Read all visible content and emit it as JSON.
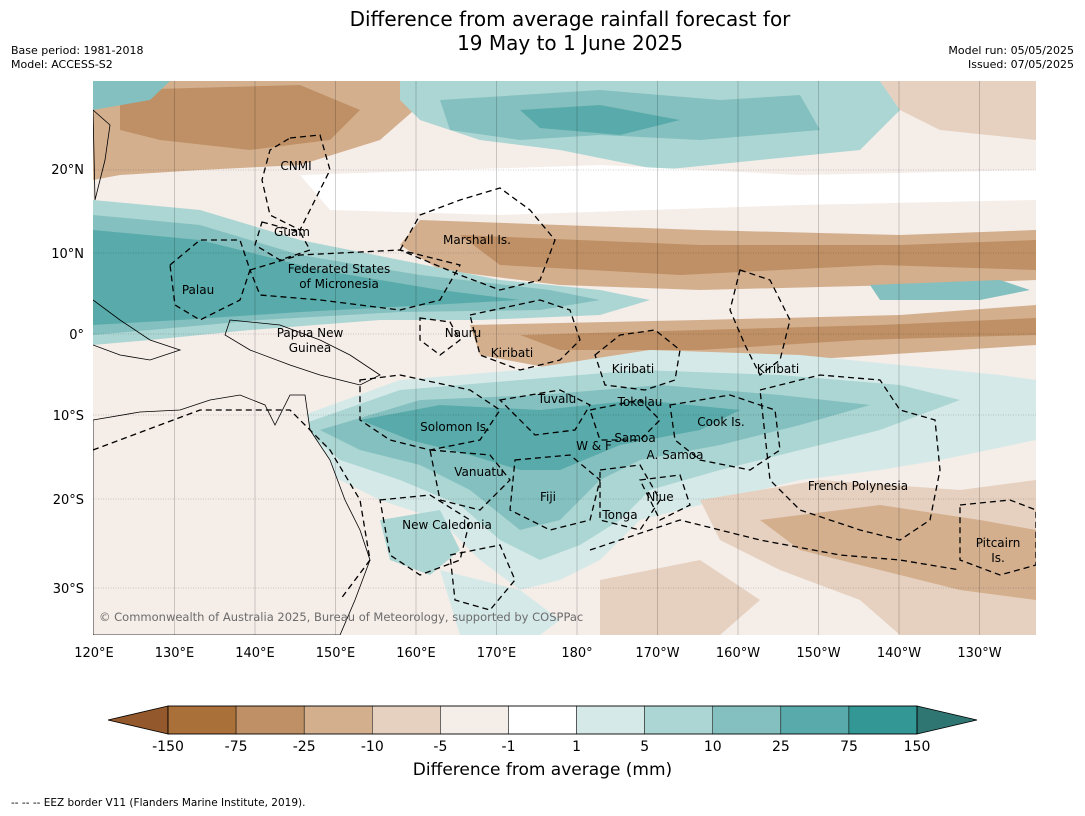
{
  "title": {
    "line1": "Difference from average rainfall forecast for",
    "line2": "19 May to 1 June 2025"
  },
  "meta_left": {
    "base_period": "Base period: 1981-2018",
    "model": "Model: ACCESS-S2"
  },
  "meta_right": {
    "model_run": "Model run: 05/05/2025",
    "issued": "Issued: 07/05/2025"
  },
  "map": {
    "longitude_ticks": [
      "120°E",
      "130°E",
      "140°E",
      "150°E",
      "160°E",
      "170°E",
      "180°",
      "170°W",
      "160°W",
      "150°W",
      "140°W",
      "130°W"
    ],
    "latitude_ticks": [
      "20°N",
      "10°N",
      "0°",
      "10°S",
      "20°S",
      "30°S"
    ],
    "credit": "© Commonwealth of Australia 2025, Bureau of Meteorology, supported by COSPPac",
    "regions": [
      {
        "id": "cnmi",
        "lines": [
          "CNMI"
        ]
      },
      {
        "id": "guam",
        "lines": [
          "Guam"
        ]
      },
      {
        "id": "marshall",
        "lines": [
          "Marshall Is."
        ]
      },
      {
        "id": "fsm",
        "lines": [
          "Federated States",
          "of Micronesia"
        ]
      },
      {
        "id": "palau",
        "lines": [
          "Palau"
        ]
      },
      {
        "id": "png",
        "lines": [
          "Papua New",
          "Guinea"
        ]
      },
      {
        "id": "nauru",
        "lines": [
          "Nauru"
        ]
      },
      {
        "id": "kiribati-w",
        "lines": [
          "Kiribati"
        ]
      },
      {
        "id": "kiribati-c",
        "lines": [
          "Kiribati"
        ]
      },
      {
        "id": "kiribati-e",
        "lines": [
          "Kiribati"
        ]
      },
      {
        "id": "tuvalu",
        "lines": [
          "Tuvalu"
        ]
      },
      {
        "id": "tokelau",
        "lines": [
          "Tokelau"
        ]
      },
      {
        "id": "cook",
        "lines": [
          "Cook Is."
        ]
      },
      {
        "id": "solomon",
        "lines": [
          "Solomon Is."
        ]
      },
      {
        "id": "wf",
        "lines": [
          "W & F"
        ]
      },
      {
        "id": "samoa",
        "lines": [
          "Samoa"
        ]
      },
      {
        "id": "asamoa",
        "lines": [
          "A. Samoa"
        ]
      },
      {
        "id": "vanuatu",
        "lines": [
          "Vanuatu"
        ]
      },
      {
        "id": "fiji",
        "lines": [
          "Fiji"
        ]
      },
      {
        "id": "niue",
        "lines": [
          "Niue"
        ]
      },
      {
        "id": "tonga",
        "lines": [
          "Tonga"
        ]
      },
      {
        "id": "frpoly",
        "lines": [
          "French Polynesia"
        ]
      },
      {
        "id": "newcal",
        "lines": [
          "New Caledonia"
        ]
      },
      {
        "id": "pitcairn",
        "lines": [
          "Pitcairn",
          "Is."
        ]
      }
    ]
  },
  "colorbar": {
    "title": "Difference from average (mm)",
    "tick_labels": [
      "-150",
      "-75",
      "-25",
      "-10",
      "-5",
      "-1",
      "1",
      "5",
      "10",
      "25",
      "75",
      "150"
    ],
    "colors": [
      "#a9703a",
      "#bf9065",
      "#d3af8e",
      "#e6d1c0",
      "#f5ede8",
      "#ffffff",
      "#d5eae8",
      "#acd6d3",
      "#84c0bf",
      "#58abaa",
      "#339795"
    ],
    "extend_low_color": "#93582b",
    "extend_high_color": "#2f7572"
  },
  "footnote": "--  --  -- EEZ border V11 (Flanders Marine Institute, 2019)."
}
